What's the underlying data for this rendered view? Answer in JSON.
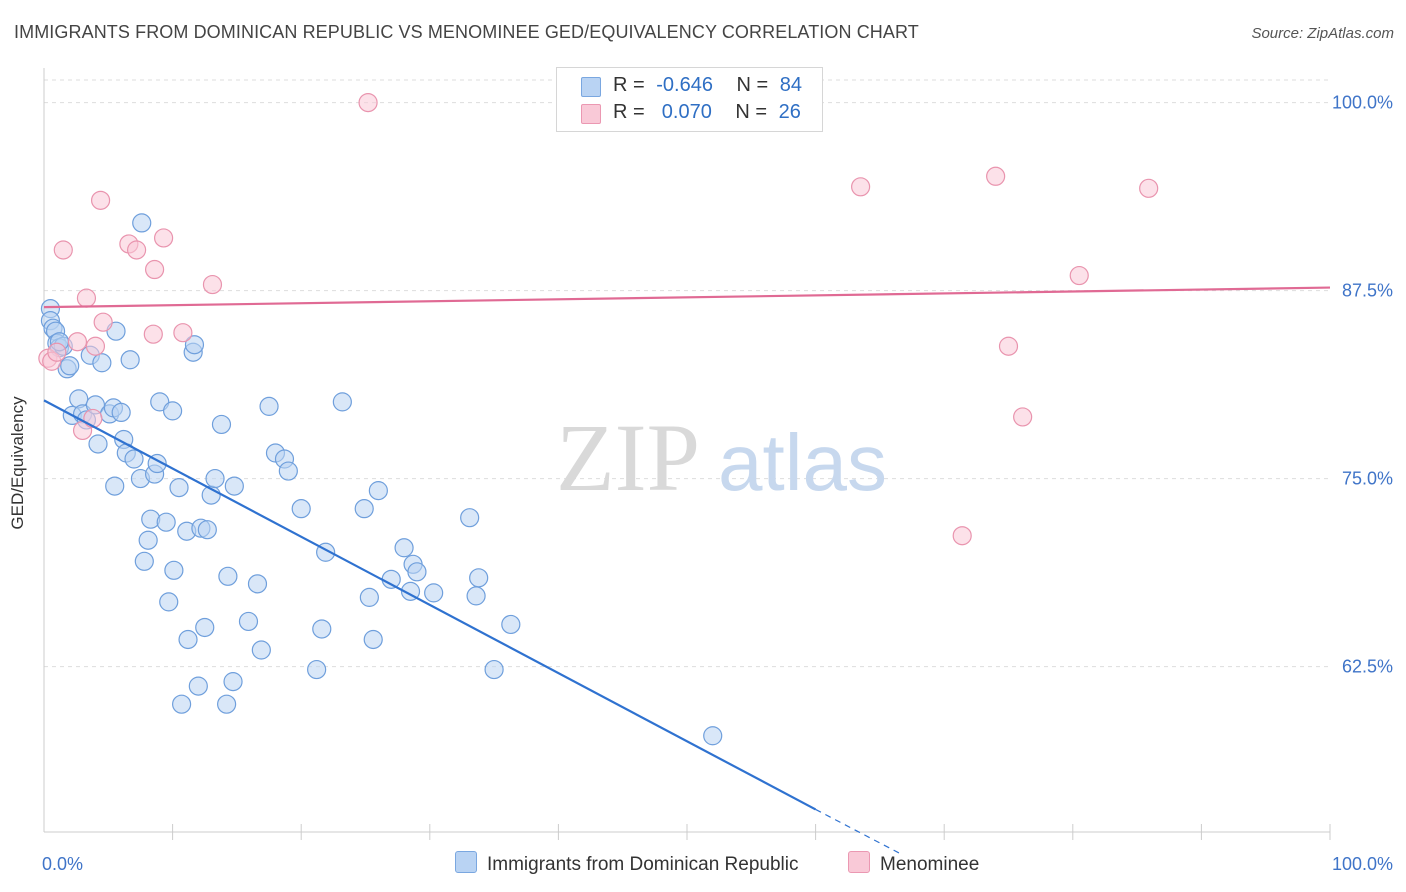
{
  "title": "IMMIGRANTS FROM DOMINICAN REPUBLIC VS MENOMINEE GED/EQUIVALENCY CORRELATION CHART",
  "source": "Source: ZipAtlas.com",
  "watermark": {
    "zip": "ZIP",
    "atlas": "atlas"
  },
  "legend": {
    "r_label": "R =",
    "n_label": "N =",
    "rows": [
      {
        "r": "-0.646",
        "n": "84",
        "color": "#b9d3f3",
        "stroke": "#7aa7e0"
      },
      {
        "r": " 0.070",
        "n": "26",
        "color": "#f9c9d7",
        "stroke": "#eb98b2"
      }
    ]
  },
  "colors": {
    "blue_fill": "#b9d3f3",
    "blue_stroke": "#6f9fdc",
    "blue_line": "#2f72d0",
    "pink_fill": "#f9c9d7",
    "pink_stroke": "#e994ae",
    "pink_line": "#e06a94",
    "axis_text": "#3f74c8",
    "grid": "#dddddd"
  },
  "chart_data": {
    "type": "scatter",
    "xlabel": "",
    "ylabel": "GED/Equivalency",
    "xlim": [
      0,
      100
    ],
    "ylim": [
      51.5,
      102.3
    ],
    "x_tick_labels": [
      {
        "value": 0,
        "label": "0.0%"
      },
      {
        "value": 100,
        "label": "100.0%"
      }
    ],
    "x_minor_ticks": [
      10,
      20,
      30,
      40,
      50,
      60,
      70,
      80,
      90,
      100
    ],
    "y_ticks": [
      {
        "value": 100,
        "label": "100.0%"
      },
      {
        "value": 87.5,
        "label": "87.5%"
      },
      {
        "value": 75,
        "label": "75.0%"
      },
      {
        "value": 62.5,
        "label": "62.5%"
      }
    ],
    "grid": true,
    "legend_position": "bottom",
    "series": [
      {
        "name": "Immigrants from Dominican Republic",
        "color": "#b9d3f3",
        "trend": {
          "x": [
            0,
            60
          ],
          "y": [
            80.2,
            53.0
          ],
          "dashed_to": [
            66.5,
            50.1
          ]
        },
        "points": [
          [
            0.5,
            86.3
          ],
          [
            0.5,
            85.5
          ],
          [
            0.7,
            85.0
          ],
          [
            0.9,
            84.8
          ],
          [
            1.0,
            84.0
          ],
          [
            1.2,
            83.7
          ],
          [
            1.5,
            83.8
          ],
          [
            1.8,
            82.3
          ],
          [
            2.0,
            82.5
          ],
          [
            2.2,
            79.2
          ],
          [
            2.7,
            80.3
          ],
          [
            3.0,
            79.3
          ],
          [
            3.3,
            78.9
          ],
          [
            3.6,
            83.2
          ],
          [
            4.0,
            79.9
          ],
          [
            4.2,
            77.3
          ],
          [
            4.5,
            82.7
          ],
          [
            5.1,
            79.3
          ],
          [
            5.4,
            79.7
          ],
          [
            5.5,
            74.5
          ],
          [
            5.6,
            84.8
          ],
          [
            6.0,
            79.4
          ],
          [
            6.2,
            77.6
          ],
          [
            6.4,
            76.7
          ],
          [
            6.7,
            82.9
          ],
          [
            7.0,
            76.3
          ],
          [
            7.5,
            75.0
          ],
          [
            7.6,
            92.0
          ],
          [
            7.8,
            69.5
          ],
          [
            8.1,
            70.9
          ],
          [
            8.3,
            72.3
          ],
          [
            8.6,
            75.3
          ],
          [
            8.8,
            76.0
          ],
          [
            9.0,
            80.1
          ],
          [
            9.5,
            72.1
          ],
          [
            9.7,
            66.8
          ],
          [
            10.0,
            79.5
          ],
          [
            10.1,
            68.9
          ],
          [
            10.5,
            74.4
          ],
          [
            10.7,
            60.0
          ],
          [
            11.1,
            71.5
          ],
          [
            11.2,
            64.3
          ],
          [
            11.6,
            83.4
          ],
          [
            11.7,
            83.9
          ],
          [
            12.0,
            61.2
          ],
          [
            12.2,
            71.7
          ],
          [
            12.5,
            65.1
          ],
          [
            12.7,
            71.6
          ],
          [
            13.0,
            73.9
          ],
          [
            13.3,
            75.0
          ],
          [
            13.8,
            78.6
          ],
          [
            14.2,
            60.0
          ],
          [
            14.3,
            68.5
          ],
          [
            14.7,
            61.5
          ],
          [
            14.8,
            74.5
          ],
          [
            15.9,
            65.5
          ],
          [
            16.6,
            68.0
          ],
          [
            16.9,
            63.6
          ],
          [
            17.5,
            79.8
          ],
          [
            18.0,
            76.7
          ],
          [
            18.7,
            76.3
          ],
          [
            19.0,
            75.5
          ],
          [
            20.0,
            73.0
          ],
          [
            21.2,
            62.3
          ],
          [
            21.6,
            65.0
          ],
          [
            21.9,
            70.1
          ],
          [
            23.2,
            80.1
          ],
          [
            24.9,
            73.0
          ],
          [
            25.3,
            67.1
          ],
          [
            25.6,
            64.3
          ],
          [
            26.0,
            74.2
          ],
          [
            27.0,
            68.3
          ],
          [
            28.0,
            70.4
          ],
          [
            28.5,
            67.5
          ],
          [
            28.7,
            69.3
          ],
          [
            29.0,
            68.8
          ],
          [
            30.3,
            67.4
          ],
          [
            33.1,
            72.4
          ],
          [
            33.6,
            67.2
          ],
          [
            33.8,
            68.4
          ],
          [
            35.0,
            62.3
          ],
          [
            36.3,
            65.3
          ],
          [
            52.0,
            57.9
          ],
          [
            1.2,
            84.1
          ]
        ]
      },
      {
        "name": "Menominee",
        "color": "#f9c9d7",
        "trend": {
          "x": [
            0,
            100
          ],
          "y": [
            86.4,
            87.7
          ]
        },
        "points": [
          [
            0.3,
            83.0
          ],
          [
            0.6,
            82.8
          ],
          [
            1.0,
            83.4
          ],
          [
            1.5,
            90.2
          ],
          [
            2.6,
            84.1
          ],
          [
            3.0,
            78.2
          ],
          [
            3.3,
            87.0
          ],
          [
            4.0,
            83.8
          ],
          [
            4.4,
            93.5
          ],
          [
            4.6,
            85.4
          ],
          [
            6.6,
            90.6
          ],
          [
            7.2,
            90.2
          ],
          [
            8.5,
            84.6
          ],
          [
            8.6,
            88.9
          ],
          [
            9.3,
            91.0
          ],
          [
            10.8,
            84.7
          ],
          [
            13.1,
            87.9
          ],
          [
            25.2,
            100.0
          ],
          [
            63.5,
            94.4
          ],
          [
            71.4,
            71.2
          ],
          [
            74.0,
            95.1
          ],
          [
            75.0,
            83.8
          ],
          [
            76.1,
            79.1
          ],
          [
            80.5,
            88.5
          ],
          [
            85.9,
            94.3
          ],
          [
            3.8,
            79.0
          ]
        ]
      }
    ]
  }
}
